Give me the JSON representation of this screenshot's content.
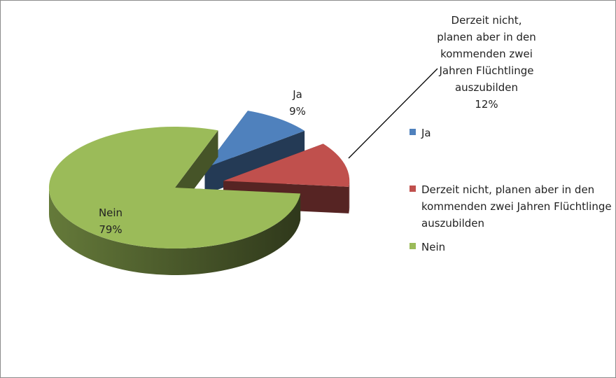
{
  "chart_data": {
    "type": "pie3d",
    "categories": [
      "Ja",
      "Derzeit nicht, planen aber in den kommenden zwei Jahren Flüchtlinge auszubilden",
      "Nein"
    ],
    "values": [
      9,
      12,
      79
    ],
    "value_labels": [
      "9%",
      "12%",
      "79%"
    ],
    "colors": [
      "#4f81bd",
      "#c0504d",
      "#9bbb59"
    ],
    "legend": "right"
  }
}
